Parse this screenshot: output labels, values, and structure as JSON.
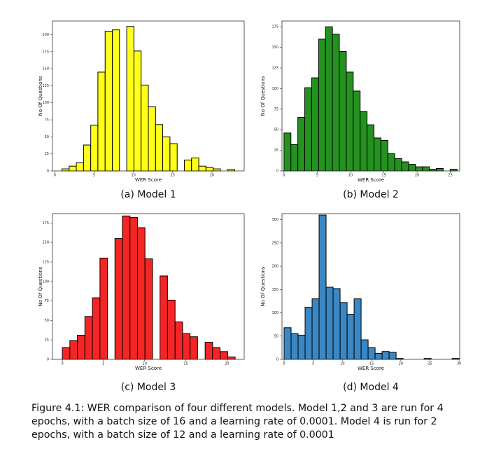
{
  "chart_data": [
    {
      "type": "histogram",
      "caption": "(a) Model 1",
      "x_label": "WER Score",
      "y_label": "No Of Questions",
      "color": "#ffff1a",
      "bins": [
        0.9,
        1.82,
        2.73,
        3.65,
        4.57,
        5.48,
        6.4,
        7.32,
        8.23,
        9.15,
        10.07,
        10.98,
        11.9,
        12.82,
        13.73,
        14.65,
        15.57,
        16.48,
        17.4,
        18.32,
        19.23,
        20.15,
        21.07,
        21.98,
        22.9
      ],
      "values": [
        3,
        7,
        12,
        38,
        67,
        145,
        205,
        207,
        0,
        212,
        176,
        126,
        94,
        68,
        50,
        40,
        0,
        16,
        19,
        7,
        5,
        3,
        0,
        2
      ],
      "xlim": [
        -0.3,
        24.1
      ],
      "xticks": [
        0,
        5,
        10,
        15,
        20
      ],
      "ylim": [
        0,
        220
      ],
      "yticks": [
        0,
        25,
        50,
        75,
        100,
        125,
        150,
        175,
        200
      ]
    },
    {
      "type": "histogram",
      "caption": "(b) Model 2",
      "x_label": "WER Score",
      "y_label": "No Of Questions",
      "color": "#23921f",
      "bins": [
        0,
        1.04,
        2.08,
        3.12,
        4.16,
        5.2,
        6.24,
        7.28,
        8.32,
        9.36,
        10.4,
        11.44,
        12.48,
        13.52,
        14.56,
        15.6,
        16.64,
        17.68,
        18.72,
        19.76,
        20.8,
        21.84,
        22.88,
        23.92,
        24.96,
        26
      ],
      "values": [
        46,
        32,
        65,
        101,
        113,
        160,
        175,
        166,
        145,
        120,
        97,
        72,
        56,
        40,
        37,
        21,
        15,
        11,
        8,
        5,
        5,
        2,
        3,
        0,
        2
      ],
      "xlim": [
        -0.3,
        26.4
      ],
      "xticks": [
        0,
        5,
        10,
        15,
        20,
        25
      ],
      "ylim": [
        0,
        182
      ],
      "yticks": [
        0,
        25,
        50,
        75,
        100,
        125,
        150,
        175
      ]
    },
    {
      "type": "histogram",
      "caption": "(c) Model 3",
      "x_label": "WER Score",
      "y_label": "No Of Questions",
      "color": "#f52525",
      "bins": [
        0,
        0.91,
        1.83,
        2.74,
        3.65,
        4.57,
        5.48,
        6.39,
        7.3,
        8.22,
        9.13,
        10.04,
        10.96,
        11.87,
        12.78,
        13.7,
        14.61,
        15.52,
        16.43,
        17.35,
        18.26,
        19.17,
        20.09,
        21
      ],
      "values": [
        15,
        24,
        31,
        55,
        79,
        130,
        0,
        155,
        184,
        182,
        169,
        129,
        0,
        107,
        76,
        48,
        33,
        29,
        0,
        22,
        15,
        10,
        3
      ],
      "xlim": [
        -1.2,
        22.1
      ],
      "xticks": [
        0,
        5,
        10,
        15,
        20
      ],
      "ylim": [
        0,
        187
      ],
      "yticks": [
        0,
        25,
        50,
        75,
        100,
        125,
        150,
        175
      ]
    },
    {
      "type": "histogram",
      "caption": "(d) Model 4",
      "x_label": "WER Score",
      "y_label": "No Of Questions",
      "color": "#3a87c4",
      "bins": [
        0,
        1.2,
        2.4,
        3.6,
        4.8,
        6,
        7.2,
        8.4,
        9.6,
        10.8,
        12,
        13.2,
        14.4,
        15.6,
        16.8,
        18,
        19.2,
        20.4,
        21.6,
        22.8,
        24,
        25.2,
        26.4,
        27.6,
        28.8,
        30
      ],
      "values": [
        68,
        55,
        52,
        112,
        130,
        310,
        155,
        152,
        122,
        97,
        130,
        42,
        25,
        13,
        17,
        15,
        2,
        0,
        0,
        0,
        2,
        0,
        0,
        0,
        2
      ],
      "xlim": [
        -0.36,
        30.1
      ],
      "xticks": [
        0,
        5,
        10,
        15,
        20,
        25,
        30
      ],
      "ylim": [
        0,
        313
      ],
      "yticks": [
        0,
        50,
        100,
        150,
        200,
        250,
        300
      ]
    }
  ],
  "figure_caption": "Figure 4.1: WER comparison of four different models. Model 1,2 and 3 are run for 4 epochs, with a batch size of 16 and a learning rate of 0.0001. Model 4 is run for 2 epochs, with a batch size of 12 and a learning rate of 0.0001"
}
